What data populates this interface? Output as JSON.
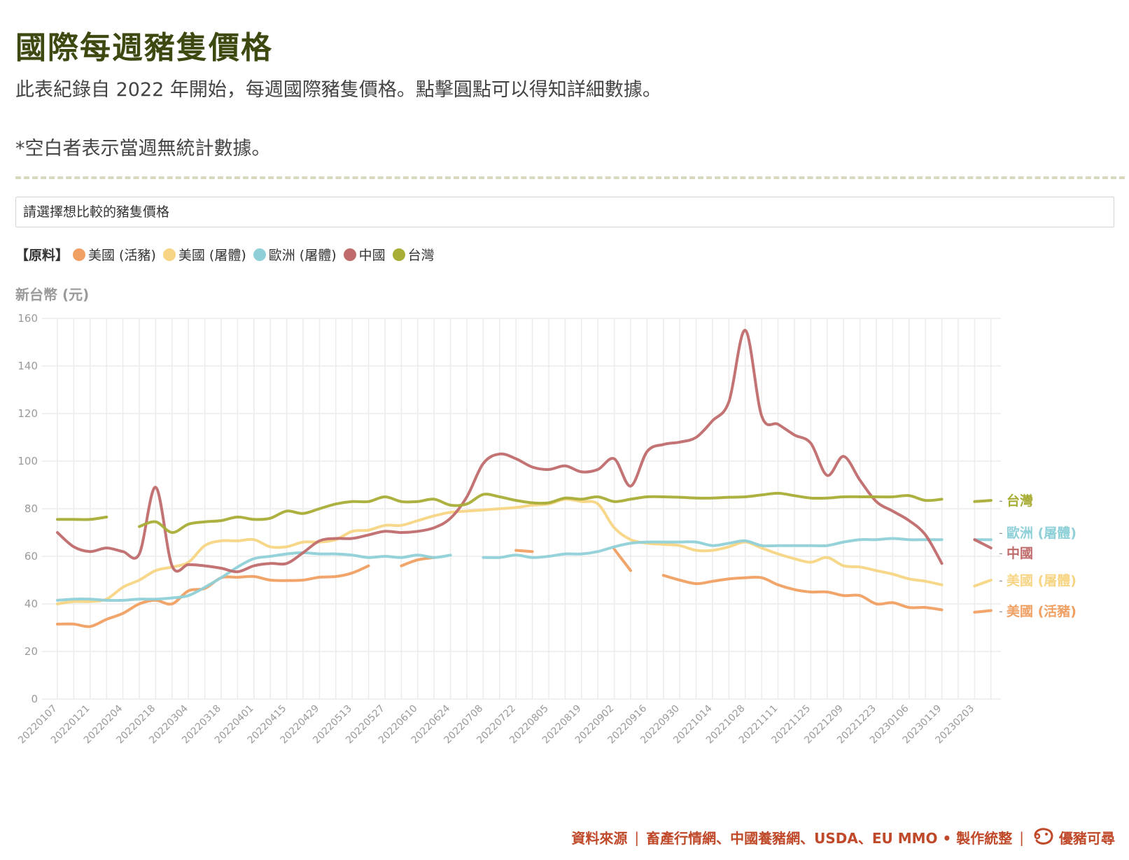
{
  "header": {
    "title": "國際每週豬隻價格",
    "subtitle": "此表紀錄自 2022 年開始，每週國際豬隻價格。點擊圓點可以得知詳細數據。",
    "note": "*空白者表示當週無統計數據。"
  },
  "selector": {
    "placeholder": "請選擇想比較的豬隻價格"
  },
  "legend": {
    "category": "【原料】",
    "items": [
      {
        "label": "美國 (活豬)",
        "color": "#f0a062"
      },
      {
        "label": "美國 (屠體)",
        "color": "#f7d584"
      },
      {
        "label": "歐洲 (屠體)",
        "color": "#8fd0d8"
      },
      {
        "label": "中國",
        "color": "#c06b6b"
      },
      {
        "label": "台灣",
        "color": "#a8ad36"
      }
    ]
  },
  "footer": {
    "source_label": "資料來源",
    "sources": "畜產行情網、中國養豬網、USDA、EU MMO • 製作統整",
    "brand": "優豬可尋",
    "brand_color": "#c0492a"
  },
  "chart_data": {
    "type": "line",
    "ylabel": "新台幣 (元)",
    "ylim": [
      0,
      160
    ],
    "yticks": [
      0,
      20,
      40,
      60,
      80,
      100,
      120,
      140,
      160
    ],
    "grid": true,
    "x": [
      "20220107",
      "20220114",
      "20220121",
      "20220128",
      "20220204",
      "20220211",
      "20220218",
      "20220225",
      "20220304",
      "20220311",
      "20220318",
      "20220325",
      "20220401",
      "20220408",
      "20220415",
      "20220422",
      "20220429",
      "20220506",
      "20220513",
      "20220520",
      "20220527",
      "20220603",
      "20220610",
      "20220617",
      "20220624",
      "20220701",
      "20220708",
      "20220715",
      "20220722",
      "20220729",
      "20220805",
      "20220812",
      "20220819",
      "20220826",
      "20220902",
      "20220909",
      "20220916",
      "20220923",
      "20220930",
      "20221007",
      "20221014",
      "20221021",
      "20221028",
      "20221104",
      "20221111",
      "20221118",
      "20221125",
      "20221202",
      "20221209",
      "20221216",
      "20221223",
      "20221230",
      "20230106",
      "20230113",
      "20230119",
      "20230127",
      "20230203",
      "20230210"
    ],
    "xtick_labels": [
      "20220107",
      "20220121",
      "20220204",
      "20220218",
      "20220304",
      "20220318",
      "20220401",
      "20220415",
      "20220429",
      "20220513",
      "20220527",
      "20220610",
      "20220624",
      "20220708",
      "20220722",
      "20220805",
      "20220819",
      "20220902",
      "20220916",
      "20220930",
      "20221014",
      "20221028",
      "20221111",
      "20221125",
      "20221209",
      "20221223",
      "20230106",
      "20230119",
      "20230203"
    ],
    "series": [
      {
        "name": "美國 (活豬)",
        "color": "#f0a062",
        "end_value": 37.2,
        "values": [
          31.5,
          31.5,
          30.5,
          33.5,
          36,
          40,
          41.5,
          40,
          45.5,
          46.5,
          51,
          51.2,
          51.5,
          50,
          49.8,
          50,
          51.2,
          51.5,
          53,
          56,
          null,
          56,
          58.5,
          59.5,
          null,
          null,
          null,
          null,
          62.5,
          62,
          null,
          null,
          null,
          null,
          63,
          54,
          null,
          52,
          50,
          48.5,
          49.5,
          50.5,
          51,
          51,
          48,
          46,
          45,
          45,
          43.5,
          43.5,
          40,
          40.5,
          38.5,
          38.5,
          37.5,
          null,
          36.5,
          37.2
        ]
      },
      {
        "name": "美國 (屠體)",
        "color": "#f7d584",
        "end_value": 50,
        "values": [
          40,
          41,
          41,
          42,
          47,
          50,
          54,
          55.5,
          57.5,
          64.5,
          66.5,
          66.5,
          67,
          64,
          64,
          66,
          66,
          67,
          70.5,
          71,
          73,
          73,
          75,
          77,
          78.5,
          79,
          79.5,
          80,
          80.5,
          81.5,
          82,
          84,
          83,
          82,
          72,
          67,
          65.5,
          65,
          64.5,
          62.5,
          62.5,
          64,
          66,
          63.5,
          61,
          59,
          57.5,
          59.5,
          56,
          55.5,
          54,
          52.5,
          50.5,
          49.5,
          48,
          null,
          47.5,
          50
        ]
      },
      {
        "name": "歐洲 (屠體)",
        "color": "#8fd0d8",
        "end_value": 67,
        "values": [
          41.5,
          42,
          42,
          41.5,
          41.5,
          42,
          42,
          42.5,
          43.5,
          47,
          51,
          55.5,
          59,
          60,
          61,
          61.5,
          61,
          61,
          60.5,
          59.5,
          60,
          59.5,
          60.5,
          59.5,
          60.5,
          null,
          59.5,
          59.5,
          60.5,
          59.5,
          60,
          61,
          61,
          62,
          64,
          65.5,
          66,
          66,
          66,
          66,
          64.5,
          65.5,
          66.5,
          64.5,
          64.5,
          64.5,
          64.5,
          64.5,
          66,
          67,
          67,
          67.5,
          67,
          67,
          67,
          null,
          67,
          67
        ]
      },
      {
        "name": "中國",
        "color": "#c06b6b",
        "end_value": 63.5,
        "values": [
          70,
          64,
          62,
          63.5,
          62,
          61,
          89,
          56,
          56.5,
          56,
          55,
          53.5,
          56,
          57,
          57,
          61.5,
          66.5,
          67.5,
          67.5,
          69,
          70.5,
          70,
          70.5,
          72,
          76,
          85,
          99,
          103,
          101,
          97.5,
          96.5,
          98,
          95.5,
          96.5,
          101,
          89.5,
          104,
          107,
          108,
          110,
          117,
          125,
          155,
          119,
          115.5,
          111,
          107.5,
          94,
          102,
          92,
          83,
          79,
          75,
          69,
          57,
          null,
          67,
          63.5
        ]
      },
      {
        "name": "台灣",
        "color": "#a8ad36",
        "end_value": 83.5,
        "values": [
          75.5,
          75.5,
          75.5,
          76.5,
          null,
          72.5,
          74.5,
          70,
          73.5,
          74.5,
          75,
          76.5,
          75.5,
          76,
          79,
          78,
          80,
          82,
          83,
          83,
          85,
          83,
          83,
          84,
          81.5,
          82,
          86,
          85,
          83.5,
          82.5,
          82.5,
          84.5,
          84,
          85,
          83,
          84,
          85,
          85,
          84.8,
          84.5,
          84.5,
          84.8,
          85,
          85.8,
          86.5,
          85.5,
          84.5,
          84.5,
          85,
          85,
          85,
          85,
          85.5,
          83.5,
          84,
          null,
          83,
          83.5
        ]
      }
    ]
  }
}
